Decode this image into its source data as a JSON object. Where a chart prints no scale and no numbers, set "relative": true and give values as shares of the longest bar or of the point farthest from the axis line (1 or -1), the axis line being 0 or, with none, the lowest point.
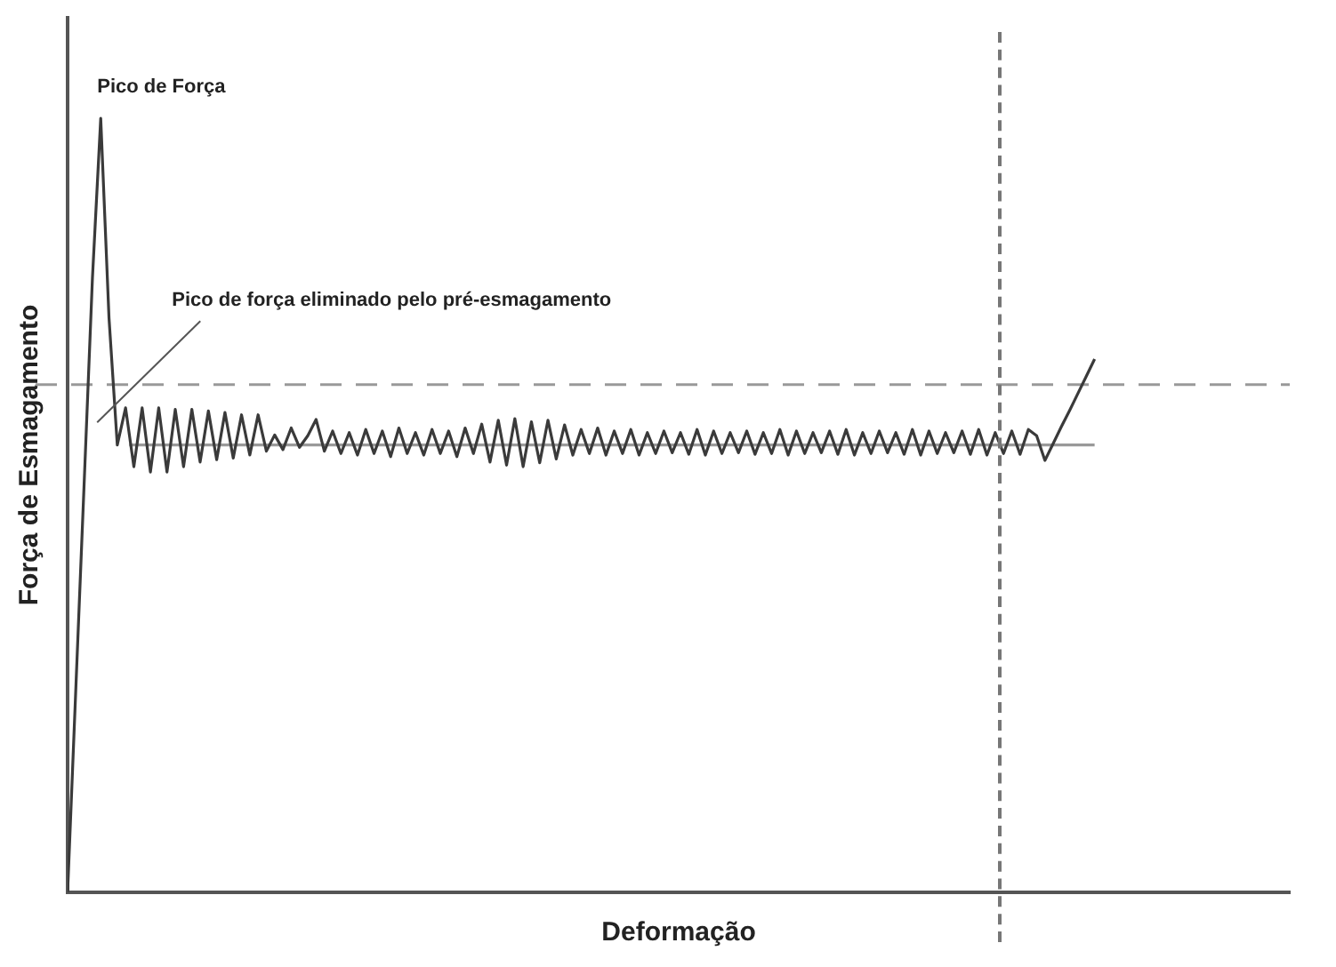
{
  "chart_data": {
    "type": "line",
    "relative": true,
    "xlabel": "Deformação",
    "ylabel": "Força de Esmagamento",
    "marker": "none",
    "line_style": "solid",
    "categories": [
      null,
      null,
      null,
      null,
      null,
      null,
      null,
      null,
      null,
      null,
      null,
      null,
      null,
      null,
      null,
      null,
      null,
      null,
      null,
      null,
      null,
      null,
      null,
      null,
      null,
      null,
      null,
      null,
      null,
      null,
      null,
      null,
      null,
      null,
      null,
      null,
      null,
      null,
      null,
      null,
      null,
      null,
      null,
      null,
      null,
      null,
      null,
      null,
      null,
      null,
      null,
      null,
      null,
      null,
      null,
      null,
      null,
      null,
      null,
      null,
      null,
      null,
      null,
      null,
      null,
      null,
      null,
      null,
      null,
      null,
      null,
      null,
      null,
      null,
      null,
      null,
      null,
      null,
      null,
      null,
      null,
      null,
      null,
      null,
      null,
      null,
      null,
      null,
      null,
      null,
      null,
      null,
      null,
      null,
      null,
      null,
      null,
      null,
      null,
      null,
      null,
      null,
      null,
      null,
      null,
      null,
      null,
      null,
      null,
      null,
      null,
      null,
      null,
      null,
      null,
      null,
      null,
      null,
      null,
      null,
      null,
      null,
      null,
      null,
      null
    ],
    "series": [
      {
        "color": "#3a3a3a",
        "values": [
          0,
          0.265,
          0.529,
          0.794,
          1,
          0.742,
          0.578,
          0.626,
          0.55,
          0.626,
          0.543,
          0.626,
          0.543,
          0.624,
          0.55,
          0.624,
          0.556,
          0.622,
          0.559,
          0.62,
          0.561,
          0.617,
          0.565,
          0.617,
          0.57,
          0.591,
          0.572,
          0.6,
          0.575,
          0.59,
          0.611,
          0.57,
          0.596,
          0.567,
          0.594,
          0.565,
          0.598,
          0.567,
          0.596,
          0.563,
          0.6,
          0.567,
          0.594,
          0.565,
          0.598,
          0.567,
          0.596,
          0.563,
          0.6,
          0.567,
          0.605,
          0.556,
          0.61,
          0.552,
          0.612,
          0.55,
          0.608,
          0.555,
          0.61,
          0.56,
          0.604,
          0.565,
          0.598,
          0.567,
          0.6,
          0.565,
          0.596,
          0.567,
          0.598,
          0.565,
          0.594,
          0.567,
          0.596,
          0.568,
          0.594,
          0.566,
          0.598,
          0.565,
          0.596,
          0.567,
          0.594,
          0.568,
          0.596,
          0.566,
          0.594,
          0.567,
          0.598,
          0.565,
          0.596,
          0.567,
          0.594,
          0.568,
          0.596,
          0.566,
          0.598,
          0.565,
          0.594,
          0.567,
          0.596,
          0.568,
          0.594,
          0.566,
          0.598,
          0.565,
          0.596,
          0.567,
          0.594,
          0.568,
          0.596,
          0.566,
          0.598,
          0.565,
          0.594,
          0.567,
          0.596,
          0.566,
          0.598,
          0.59,
          0.558,
          0.58,
          0.602,
          0.623,
          0.645,
          0.667,
          0.689
        ]
      }
    ],
    "ref_lines": [
      {
        "axis": "y",
        "value": 0.656,
        "color": "#999999",
        "line_style": "dashed"
      },
      {
        "axis": "y",
        "value": 0.578,
        "color": "#999999",
        "line_style": "solid"
      }
    ],
    "annotations": [
      "Pico de Força",
      "Pico de força eliminado pelo pré-esmagamento"
    ]
  }
}
